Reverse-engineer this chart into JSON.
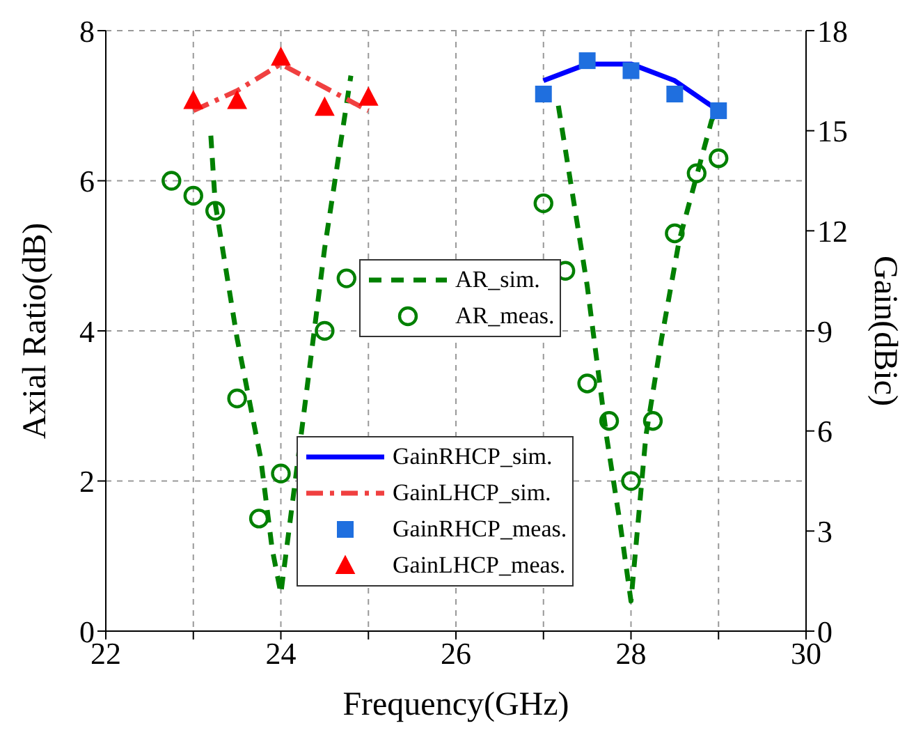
{
  "chart_data": {
    "type": "line",
    "xlabel": "Frequency(GHz)",
    "ylabel": "Axial Ratio(dB)",
    "y2label": "Gain(dBic)",
    "xlim": [
      22,
      30
    ],
    "xticks": [
      22,
      {
        "value": 23,
        "label": null
      },
      24,
      {
        "value": 25,
        "label": null
      },
      26,
      {
        "value": 27,
        "label": null
      },
      28,
      {
        "value": 29,
        "label": null
      },
      30
    ],
    "ylim": [
      0,
      8
    ],
    "yticks": [
      0,
      2,
      4,
      6,
      8
    ],
    "y2lim": [
      0,
      18
    ],
    "y2ticks": [
      0,
      3,
      6,
      9,
      12,
      15,
      18
    ],
    "grid": true,
    "legend": "center",
    "series": [
      {
        "name": "AR_sim.",
        "color": "#008000",
        "line_style": "dashed",
        "marker": "none",
        "x": [
          23.2,
          23.25,
          23.5,
          23.77,
          23.9,
          24.0,
          24.23,
          24.5,
          24.8,
          26.0,
          27.17,
          27.5,
          27.72,
          27.88,
          28.0,
          28.17,
          28.35,
          28.55,
          28.92,
          29.0
        ],
        "values": [
          6.6,
          5.7,
          3.9,
          2.3,
          1.1,
          0.5,
          2.6,
          5.1,
          7.4,
          null,
          7.0,
          4.6,
          2.6,
          1.4,
          0.4,
          2.6,
          3.9,
          5.2,
          6.8,
          7.0
        ]
      },
      {
        "name": "AR_meas.",
        "type": "scatter",
        "color": "#008000",
        "marker": "circle",
        "x": [
          22.75,
          23.0,
          23.25,
          23.5,
          23.75,
          24.0,
          24.5,
          24.75,
          27.0,
          27.25,
          27.5,
          27.75,
          28.0,
          28.25,
          28.5,
          28.75,
          29.0
        ],
        "values": [
          6.0,
          5.8,
          5.6,
          3.1,
          1.5,
          2.1,
          4.0,
          4.7,
          5.7,
          4.8,
          3.3,
          2.8,
          2.0,
          2.8,
          5.3,
          6.1,
          6.3
        ]
      },
      {
        "name": "GainRHCP_sim.",
        "axis": "y2",
        "color": "#0000ff",
        "line_style": "solid",
        "marker": "none",
        "x": [
          27.0,
          27.5,
          28.0,
          28.5,
          29.0
        ],
        "values": [
          16.5,
          17.0,
          17.0,
          16.5,
          15.6
        ]
      },
      {
        "name": "GainLHCP_sim.",
        "axis": "y2",
        "color": "#f04040",
        "line_style": "dashdot",
        "marker": "none",
        "x": [
          23.0,
          23.5,
          24.0,
          24.5,
          25.0
        ],
        "values": [
          15.6,
          16.2,
          17.0,
          16.3,
          15.6
        ]
      },
      {
        "name": "GainRHCP_meas.",
        "type": "scatter",
        "axis": "y2",
        "color": "#1f6fdf",
        "marker": "square",
        "x": [
          27.0,
          27.5,
          28.0,
          28.5,
          29.0
        ],
        "values": [
          16.1,
          17.1,
          16.8,
          16.1,
          15.6
        ]
      },
      {
        "name": "GainLHCP_meas.",
        "type": "scatter",
        "axis": "y2",
        "color": "#ff0000",
        "marker": "triangle",
        "x": [
          23.0,
          23.5,
          24.0,
          24.5,
          25.0
        ],
        "values": [
          15.9,
          15.9,
          17.2,
          15.7,
          16.0
        ]
      }
    ]
  }
}
